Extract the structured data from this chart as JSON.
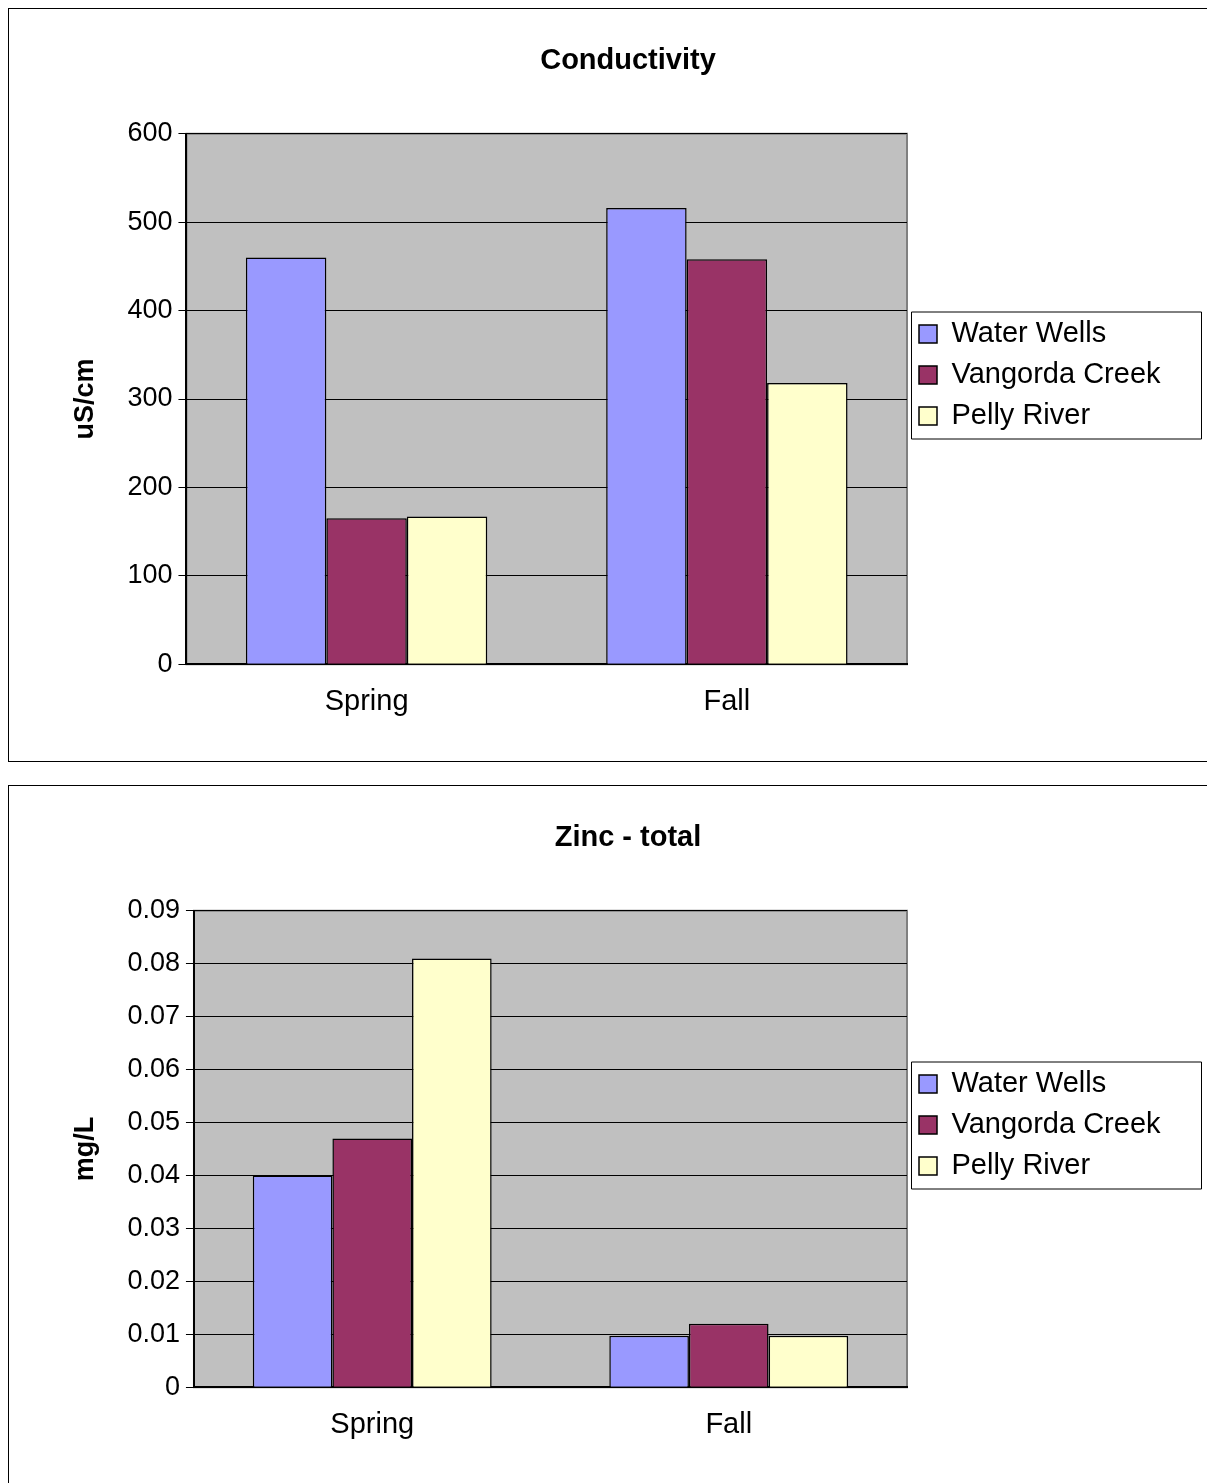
{
  "chart_data": [
    {
      "type": "bar",
      "title": "Conductivity",
      "ylabel": "uS/cm",
      "categories": [
        "Spring",
        "Fall"
      ],
      "series": [
        {
          "name": "Water Wells",
          "color": "#9999ff",
          "values": [
            460,
            516
          ]
        },
        {
          "name": "Vangorda Creek",
          "color": "#993366",
          "values": [
            165,
            458
          ]
        },
        {
          "name": "Pelly River",
          "color": "#ffffcc",
          "values": [
            167,
            318
          ]
        }
      ],
      "ylim": [
        0,
        600
      ],
      "yticks": [
        0,
        100,
        200,
        300,
        400,
        500,
        600
      ],
      "grid": "y",
      "legend": "right"
    },
    {
      "type": "bar",
      "title": "Zinc - total",
      "ylabel": "mg/L",
      "categories": [
        "Spring",
        "Fall"
      ],
      "series": [
        {
          "name": "Water Wells",
          "color": "#9999ff",
          "values": [
            0.04,
            0.0097
          ]
        },
        {
          "name": "Vangorda Creek",
          "color": "#993366",
          "values": [
            0.047,
            0.012
          ]
        },
        {
          "name": "Pelly River",
          "color": "#ffffcc",
          "values": [
            0.081,
            0.0097
          ]
        }
      ],
      "ylim": [
        0,
        0.09
      ],
      "yticks": [
        0,
        0.01,
        0.02,
        0.03,
        0.04,
        0.05,
        0.06,
        0.07,
        0.08,
        0.09
      ],
      "grid": "y",
      "legend": "right"
    }
  ]
}
